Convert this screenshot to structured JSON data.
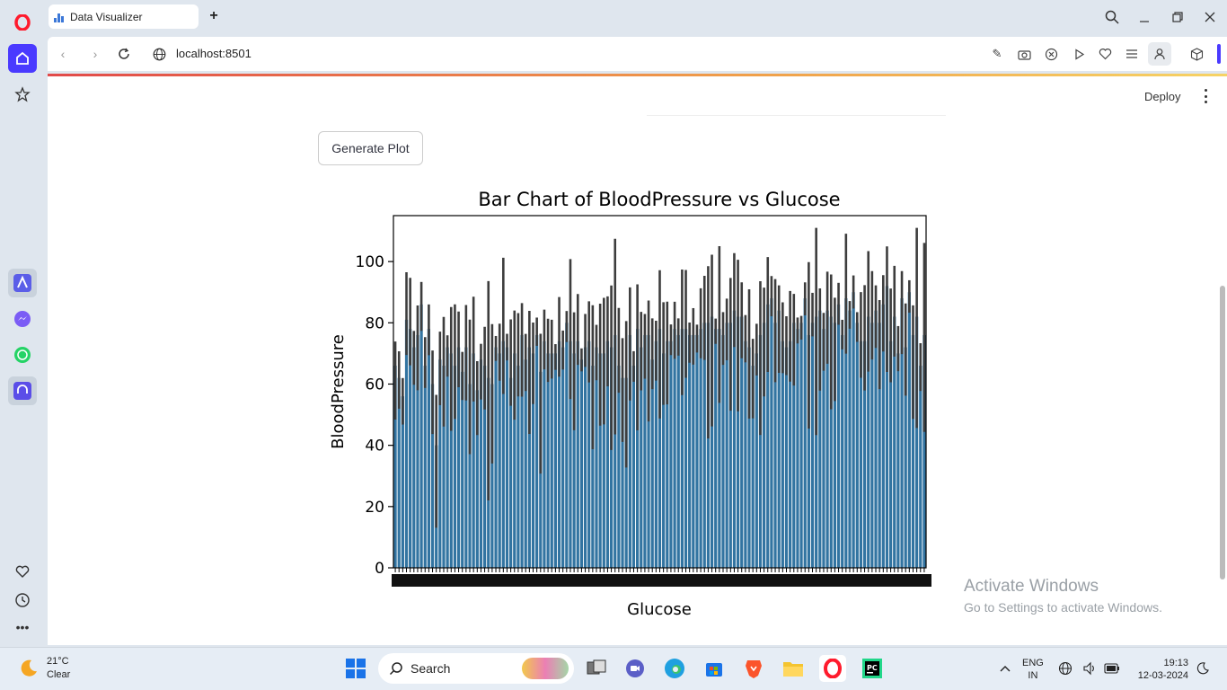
{
  "browser": {
    "tab_title": "Data Visualizer",
    "url": "localhost:8501"
  },
  "page": {
    "deploy_label": "Deploy",
    "generate_button": "Generate Plot"
  },
  "chart_data": {
    "type": "bar",
    "title": "Bar Chart of BloodPressure vs Glucose",
    "xlabel": "Glucose",
    "ylabel": "BloodPressure",
    "ylim": [
      0,
      115
    ],
    "yticks": [
      0,
      20,
      40,
      60,
      80,
      100
    ],
    "values": [
      66,
      62,
      56,
      81,
      78,
      72,
      76,
      86,
      66,
      78,
      60,
      40,
      68,
      66,
      72,
      70,
      66,
      72,
      64,
      72,
      60,
      70,
      58,
      68,
      66,
      62,
      60,
      72,
      70,
      74,
      72,
      62,
      70,
      66,
      76,
      68,
      72,
      70,
      76,
      64,
      74,
      70,
      70,
      70,
      74,
      72,
      80,
      74,
      70,
      74,
      68,
      72,
      74,
      66,
      72,
      70,
      70,
      74,
      72,
      76,
      66,
      62,
      62,
      76,
      66,
      78,
      72,
      76,
      76,
      68,
      74,
      78,
      70,
      74,
      74,
      78,
      76,
      78,
      78,
      76,
      76,
      76,
      78,
      80,
      80,
      82,
      78,
      78,
      76,
      80,
      80,
      84,
      82,
      82,
      74,
      72,
      66,
      70,
      76,
      80,
      86,
      88,
      80,
      84,
      74,
      72,
      74,
      80,
      78,
      80,
      88,
      76,
      80,
      82,
      84,
      78,
      84,
      82,
      80,
      86,
      76,
      88,
      84,
      90,
      80,
      74,
      74,
      82,
      80,
      84,
      80,
      86,
      92,
      74,
      82,
      70,
      88,
      72,
      90,
      76,
      82,
      66,
      76
    ],
    "error_bars": "black vertical lines over each bar"
  },
  "activation": {
    "line1": "Activate Windows",
    "line2": "Go to Settings to activate Windows."
  },
  "taskbar": {
    "temperature": "21°C",
    "condition": "Clear",
    "search_placeholder": "Search",
    "lang": "ENG",
    "region": "IN",
    "time": "19:13",
    "date": "12-03-2024"
  },
  "colors": {
    "bar": "#3274a1",
    "errbar": "#3d3d3d",
    "opera_red": "#ff1b2d",
    "home_active": "#4a3aff"
  }
}
